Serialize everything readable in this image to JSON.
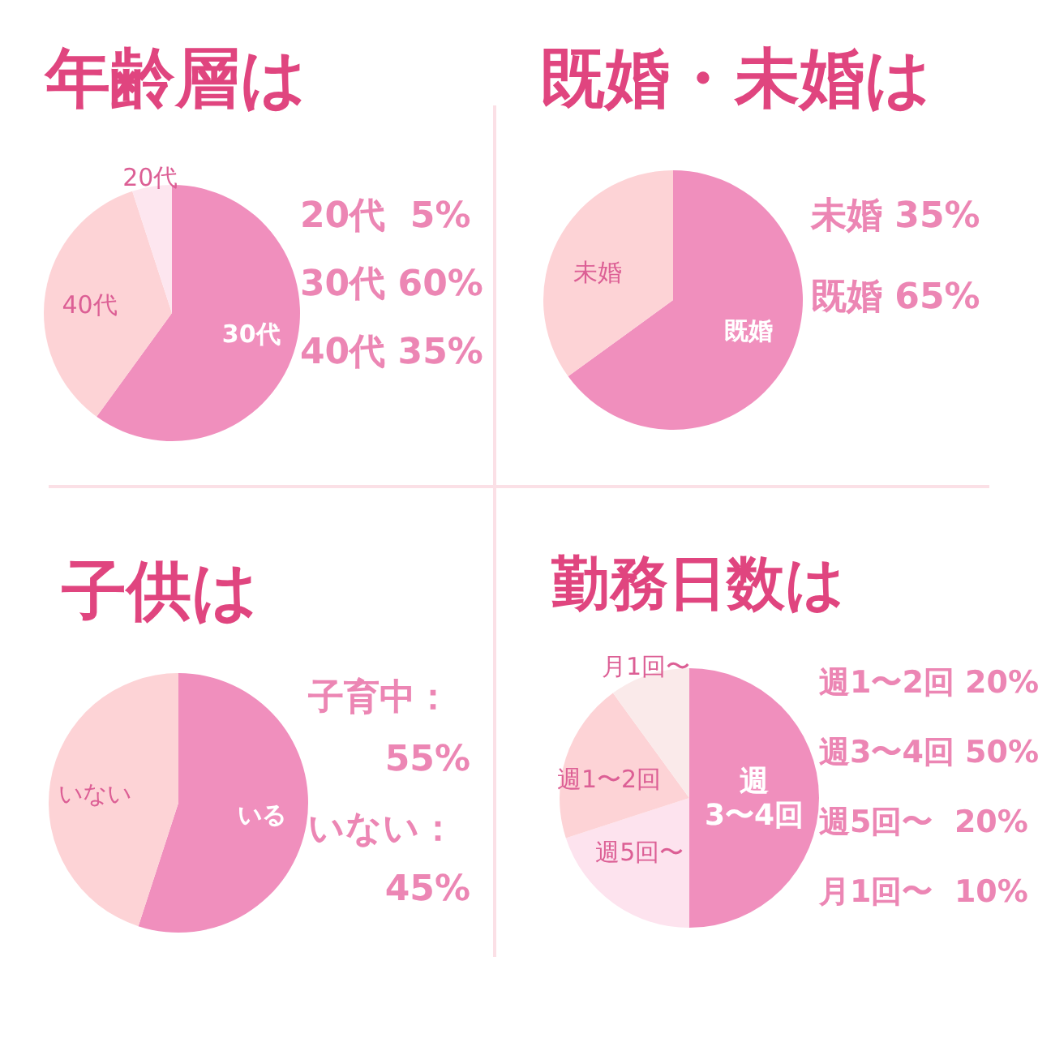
{
  "chart_data": [
    {
      "type": "pie",
      "title": "年齢層は",
      "categories": [
        "30代",
        "40代",
        "20代"
      ],
      "values": [
        60,
        35,
        5
      ],
      "colors": [
        "#f08fbd",
        "#fdd3d6",
        "#fde6ef"
      ],
      "annotations": [
        "20代  5%",
        "30代 60%",
        "40代 35%"
      ]
    },
    {
      "type": "pie",
      "title": "既婚・未婚は",
      "categories": [
        "既婚",
        "未婚"
      ],
      "values": [
        65,
        35
      ],
      "colors": [
        "#f08fbd",
        "#fdd3d6"
      ],
      "annotations": [
        "未婚 35%",
        "既婚 65%"
      ]
    },
    {
      "type": "pie",
      "title": "子供は",
      "categories": [
        "いる",
        "いない"
      ],
      "values": [
        55,
        45
      ],
      "colors": [
        "#f08fbd",
        "#fdd3d6"
      ],
      "annotations": [
        "子育中：",
        "55%",
        "いない：",
        "45%"
      ]
    },
    {
      "type": "pie",
      "title": "勤務日数は",
      "categories": [
        "週\n3〜4回",
        "週5回〜",
        "週1〜2回",
        "月1回〜"
      ],
      "values": [
        50,
        20,
        20,
        10
      ],
      "colors": [
        "#f08fbd",
        "#fde3ee",
        "#fdd3d6",
        "#faeaea"
      ],
      "annotations": [
        "週1〜2回 20%",
        "週3〜4回 50%",
        "週5回〜  20%",
        "月1回〜  10%"
      ]
    }
  ]
}
